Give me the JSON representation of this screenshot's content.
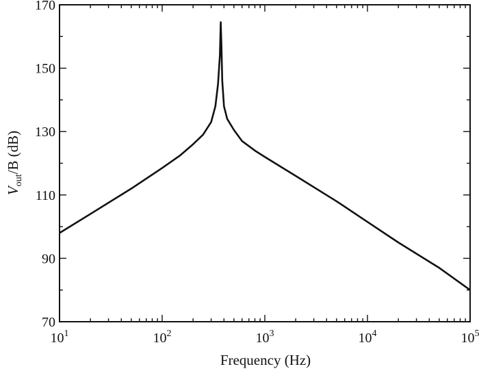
{
  "chart_data": {
    "type": "line",
    "xlabel": "Frequency (Hz)",
    "ylabel": {
      "main": "V",
      "subscript": "out",
      "rest": "/B (dB)"
    },
    "x_scale": "log",
    "xlim": [
      10,
      100000
    ],
    "ylim": [
      70,
      170
    ],
    "x_ticks": [
      {
        "base": "10",
        "exp": "1"
      },
      {
        "base": "10",
        "exp": "2"
      },
      {
        "base": "10",
        "exp": "3"
      },
      {
        "base": "10",
        "exp": "4"
      },
      {
        "base": "10",
        "exp": "5"
      }
    ],
    "y_ticks": [
      "70",
      "90",
      "110",
      "130",
      "150",
      "170"
    ],
    "grid": false,
    "series": [
      {
        "color": "#111111",
        "x": [
          10,
          20,
          50,
          100,
          150,
          200,
          250,
          300,
          330,
          350,
          365,
          372,
          378,
          385,
          400,
          430,
          500,
          600,
          800,
          1000,
          2000,
          5000,
          10000,
          20000,
          50000,
          100000
        ],
        "y": [
          98,
          104,
          112,
          118.5,
          122.5,
          126,
          129,
          133,
          138,
          145,
          154,
          164.5,
          157,
          146,
          138,
          134,
          130.5,
          127,
          124,
          122,
          116,
          108,
          101.5,
          95,
          87,
          80
        ]
      }
    ]
  }
}
